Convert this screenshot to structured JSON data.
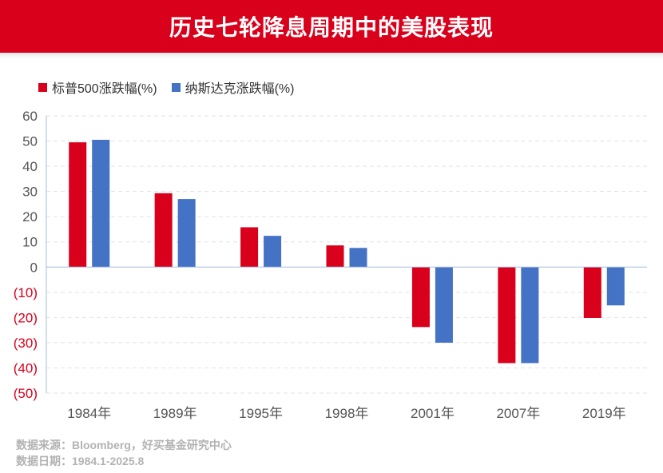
{
  "header": {
    "title": "历史七轮降息周期中的美股表现"
  },
  "colors": {
    "banner": "#d9001b",
    "sp500": "#d9001b",
    "nasdaq": "#4472c4",
    "negative_tick": "#d9001b",
    "tick": "#555555"
  },
  "chart_data": {
    "type": "bar",
    "title": "历史七轮降息周期中的美股表现",
    "categories": [
      "1984年",
      "1989年",
      "1995年",
      "1998年",
      "2001年",
      "2007年",
      "2019年"
    ],
    "series": [
      {
        "name": "标普500涨跌幅(%)",
        "values": [
          49.5,
          29.3,
          15.8,
          8.6,
          -23.8,
          -38.1,
          -20.2
        ]
      },
      {
        "name": "纳斯达克涨跌幅(%)",
        "values": [
          50.5,
          27.0,
          12.4,
          7.6,
          -30.0,
          -38.1,
          -15.2
        ]
      }
    ],
    "ylim": [
      -50,
      60
    ],
    "yticks": [
      60,
      50,
      40,
      30,
      20,
      10,
      0,
      -10,
      -20,
      -30,
      -40,
      -50
    ],
    "ytick_labels": [
      "60",
      "50",
      "40",
      "30",
      "20",
      "10",
      "0",
      "(10)",
      "(20)",
      "(30)",
      "(40)",
      "(50)"
    ],
    "grid": true,
    "legend_position": "top-left"
  },
  "footer": {
    "source": "数据来源：Bloomberg，好买基金研究中心",
    "date": "数据日期：1984.1-2025.8"
  }
}
